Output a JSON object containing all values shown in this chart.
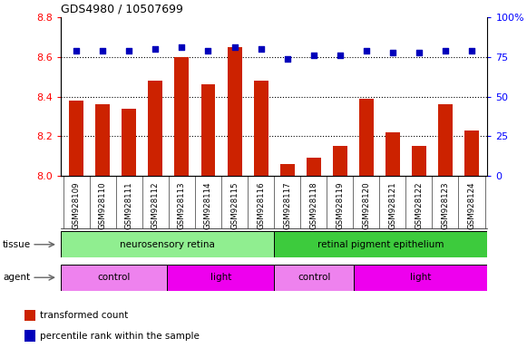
{
  "title": "GDS4980 / 10507699",
  "samples": [
    "GSM928109",
    "GSM928110",
    "GSM928111",
    "GSM928112",
    "GSM928113",
    "GSM928114",
    "GSM928115",
    "GSM928116",
    "GSM928117",
    "GSM928118",
    "GSM928119",
    "GSM928120",
    "GSM928121",
    "GSM928122",
    "GSM928123",
    "GSM928124"
  ],
  "red_values": [
    8.38,
    8.36,
    8.34,
    8.48,
    8.6,
    8.46,
    8.65,
    8.48,
    8.06,
    8.09,
    8.15,
    8.39,
    8.22,
    8.15,
    8.36,
    8.23
  ],
  "blue_values": [
    79,
    79,
    79,
    80,
    81,
    79,
    81,
    80,
    74,
    76,
    76,
    79,
    78,
    78,
    79,
    79
  ],
  "ymin": 8.0,
  "ymax": 8.8,
  "y2min": 0,
  "y2max": 100,
  "yticks": [
    8.0,
    8.2,
    8.4,
    8.6,
    8.8
  ],
  "y2ticks": [
    0,
    25,
    50,
    75,
    100
  ],
  "y2ticklabels": [
    "0",
    "25",
    "50",
    "75",
    "100%"
  ],
  "gridlines": [
    8.2,
    8.4,
    8.6
  ],
  "tissue_groups": [
    {
      "label": "neurosensory retina",
      "start": 0,
      "end": 8,
      "color": "#90EE90"
    },
    {
      "label": "retinal pigment epithelium",
      "start": 8,
      "end": 16,
      "color": "#3DCB3D"
    }
  ],
  "agent_groups": [
    {
      "label": "control",
      "start": 0,
      "end": 4,
      "color": "#EE82EE"
    },
    {
      "label": "light",
      "start": 4,
      "end": 8,
      "color": "#EE00EE"
    },
    {
      "label": "control",
      "start": 8,
      "end": 11,
      "color": "#EE82EE"
    },
    {
      "label": "light",
      "start": 11,
      "end": 16,
      "color": "#EE00EE"
    }
  ],
  "legend_red": "transformed count",
  "legend_blue": "percentile rank within the sample",
  "bar_color": "#CC2200",
  "dot_color": "#0000BB",
  "xtick_bg": "#C8C8C8",
  "plot_bg": "#FFFFFF",
  "fig_bg": "#FFFFFF"
}
